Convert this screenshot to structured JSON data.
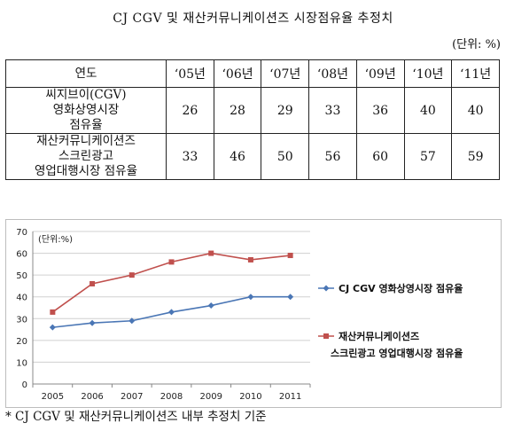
{
  "title": "CJ CGV 및 재산커뮤니케이션즈 시장점유율 추정치",
  "unit_label": "(단위: %)",
  "table": {
    "header_label": "연도",
    "years": [
      "‘05년",
      "‘06년",
      "‘07년",
      "‘08년",
      "‘09년",
      "‘10년",
      "‘11년"
    ],
    "rows": [
      {
        "label_lines": [
          "씨지브이(CGV)",
          "영화상영시장",
          "점유율"
        ],
        "values": [
          "26",
          "28",
          "29",
          "33",
          "36",
          "40",
          "40"
        ]
      },
      {
        "label_lines": [
          "재산커뮤니케이션즈",
          "스크린광고",
          "영업대행시장 점유율"
        ],
        "values": [
          "33",
          "46",
          "50",
          "56",
          "60",
          "57",
          "59"
        ]
      }
    ]
  },
  "chart_data": {
    "type": "line",
    "unit_note": "(단위:%)",
    "x": [
      "2005",
      "2006",
      "2007",
      "2008",
      "2009",
      "2010",
      "2011"
    ],
    "ylim": [
      0,
      70
    ],
    "yticks": [
      0,
      10,
      20,
      30,
      40,
      50,
      60,
      70
    ],
    "legend_position": "right",
    "series": [
      {
        "name": "CJ CGV 영화상영시장 점유율",
        "name_lines": [
          "CJ CGV 영화상영시장 점유율"
        ],
        "color": "#4a76b5",
        "marker": "diamond",
        "values": [
          26,
          28,
          29,
          33,
          36,
          40,
          40
        ]
      },
      {
        "name": "재산커뮤니케이션즈 스크린광고 영업대행시장 점유율",
        "name_lines": [
          "재산커뮤니케이션즈",
          "스크린광고 영업대행시장 점유율"
        ],
        "color": "#c0504d",
        "marker": "square",
        "values": [
          33,
          46,
          50,
          56,
          60,
          57,
          59
        ]
      }
    ]
  },
  "footnote": "* CJ CGV 및 재산커뮤니케이션즈 내부 추정치 기준"
}
